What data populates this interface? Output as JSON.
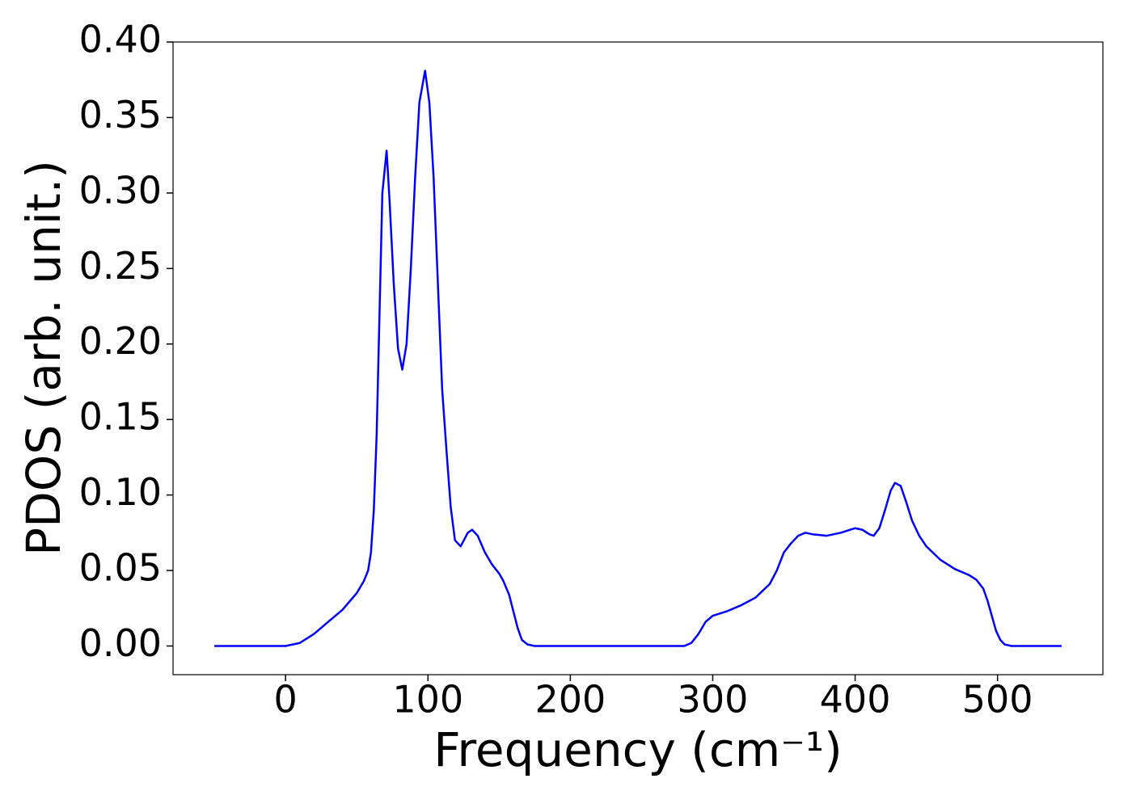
{
  "chart_data": {
    "type": "line",
    "xlabel": "Frequency (cm⁻¹)",
    "ylabel": "PDOS (arb. unit.)",
    "xlim": [
      -79,
      574
    ],
    "ylim": [
      -0.019,
      0.4
    ],
    "xticks": [
      0,
      100,
      200,
      300,
      400,
      500
    ],
    "yticks": [
      {
        "value": 0,
        "label": "0.00"
      },
      {
        "value": 0.05,
        "label": "0.05"
      },
      {
        "value": 0.1,
        "label": "0.10"
      },
      {
        "value": 0.15,
        "label": "0.15"
      },
      {
        "value": 0.2,
        "label": "0.20"
      },
      {
        "value": 0.25,
        "label": "0.25"
      },
      {
        "value": 0.3,
        "label": "0.30"
      },
      {
        "value": 0.35,
        "label": "0.35"
      },
      {
        "value": 0.4,
        "label": "0.40"
      }
    ],
    "grid": false,
    "series": [
      {
        "color": "#0000ff",
        "x": [
          -50,
          0,
          10,
          20,
          30,
          40,
          50,
          55,
          58,
          60,
          62,
          64,
          66,
          68,
          71,
          73,
          76,
          79,
          82,
          85,
          88,
          91,
          94,
          98,
          101,
          104,
          107,
          110,
          113,
          116,
          119,
          123,
          128,
          131,
          135,
          140,
          145,
          150,
          153,
          157,
          160,
          163,
          166,
          170,
          175,
          280,
          285,
          290,
          295,
          300,
          310,
          320,
          330,
          340,
          345,
          350,
          355,
          360,
          365,
          370,
          380,
          390,
          400,
          405,
          410,
          413,
          417,
          421,
          425,
          428,
          432,
          436,
          440,
          445,
          450,
          460,
          470,
          480,
          485,
          490,
          493,
          496,
          499,
          502,
          505,
          510,
          545
        ],
        "values": [
          0,
          0,
          0.002,
          0.008,
          0.016,
          0.024,
          0.035,
          0.043,
          0.05,
          0.062,
          0.09,
          0.14,
          0.22,
          0.3,
          0.328,
          0.296,
          0.24,
          0.197,
          0.183,
          0.2,
          0.25,
          0.31,
          0.36,
          0.381,
          0.36,
          0.31,
          0.24,
          0.17,
          0.13,
          0.092,
          0.07,
          0.066,
          0.075,
          0.077,
          0.073,
          0.062,
          0.054,
          0.048,
          0.043,
          0.034,
          0.023,
          0.012,
          0.004,
          0.001,
          0,
          0,
          0.002,
          0.008,
          0.016,
          0.02,
          0.023,
          0.027,
          0.032,
          0.041,
          0.05,
          0.062,
          0.068,
          0.073,
          0.075,
          0.074,
          0.073,
          0.075,
          0.078,
          0.077,
          0.074,
          0.073,
          0.078,
          0.09,
          0.103,
          0.108,
          0.106,
          0.095,
          0.083,
          0.073,
          0.066,
          0.057,
          0.051,
          0.047,
          0.044,
          0.038,
          0.03,
          0.02,
          0.01,
          0.004,
          0.001,
          0,
          0
        ]
      }
    ]
  }
}
